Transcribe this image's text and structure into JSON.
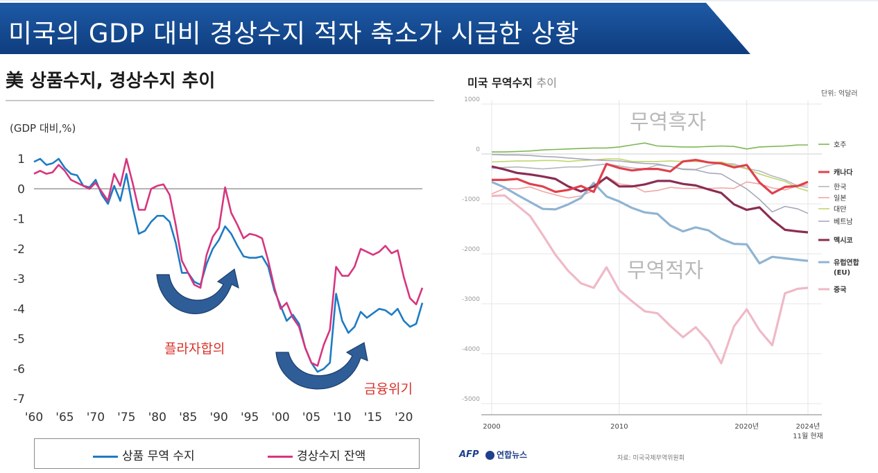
{
  "header": {
    "title": "미국의 GDP 대비 경상수지 적자 축소가 시급한 상황",
    "bg_color": "#164a8f"
  },
  "left_chart": {
    "title": "美 상품수지, 경상수지 추이",
    "unit": "(GDP 대비,%)",
    "annotations": [
      "플라자합의",
      "금융위기"
    ],
    "legend": [
      {
        "label": "상품 무역 수지",
        "color": "#1e7bc4"
      },
      {
        "label": "경상수지 잔액",
        "color": "#d6357f"
      }
    ]
  },
  "right_chart": {
    "title_bold": "미국 무역수지",
    "title_light": "추이",
    "unit": "단위: 억달러",
    "overlay_surplus": "무역흑자",
    "overlay_deficit": "무역적자",
    "source": "자료: 미국국제무역위원회",
    "logo_afp": "AFP",
    "logo_yonhap": "연합뉴스"
  },
  "chart_data": [
    {
      "type": "line",
      "title": "美 상품수지, 경상수지 추이",
      "ylabel": "(GDP 대비,%)",
      "xlabel": "",
      "ylim": [
        -7,
        1
      ],
      "yticks": [
        1,
        0,
        -1,
        -2,
        -3,
        -4,
        -5,
        -6,
        -7
      ],
      "xlim": [
        1960,
        2023
      ],
      "xtick_labels": [
        "'60",
        "'65",
        "'70",
        "'75",
        "'80",
        "'85",
        "'90",
        "'95",
        "'00",
        "'05",
        "'10",
        "'15",
        "'20"
      ],
      "xtick_years": [
        1960,
        1965,
        1970,
        1975,
        1980,
        1985,
        1990,
        1995,
        2000,
        2005,
        2010,
        2015,
        2020
      ],
      "zero_line": true,
      "x": [
        1960,
        1961,
        1962,
        1963,
        1964,
        1965,
        1966,
        1967,
        1968,
        1969,
        1970,
        1971,
        1972,
        1973,
        1974,
        1975,
        1976,
        1977,
        1978,
        1979,
        1980,
        1981,
        1982,
        1983,
        1984,
        1985,
        1986,
        1987,
        1988,
        1989,
        1990,
        1991,
        1992,
        1993,
        1994,
        1995,
        1996,
        1997,
        1998,
        1999,
        2000,
        2001,
        2002,
        2003,
        2004,
        2005,
        2006,
        2007,
        2008,
        2009,
        2010,
        2011,
        2012,
        2013,
        2014,
        2015,
        2016,
        2017,
        2018,
        2019,
        2020,
        2021,
        2022,
        2023
      ],
      "series": [
        {
          "name": "상품 무역 수지",
          "color": "#1e7bc4",
          "values": [
            0.9,
            1.0,
            0.8,
            0.85,
            1.0,
            0.7,
            0.5,
            0.45,
            0.1,
            0.05,
            0.3,
            -0.2,
            -0.5,
            0.1,
            -0.4,
            0.5,
            -0.6,
            -1.5,
            -1.4,
            -1.1,
            -0.9,
            -0.9,
            -1.1,
            -1.8,
            -2.8,
            -2.8,
            -3.1,
            -3.2,
            -2.5,
            -2.0,
            -1.7,
            -1.25,
            -1.5,
            -1.9,
            -2.25,
            -2.3,
            -2.3,
            -2.25,
            -2.6,
            -3.4,
            -3.9,
            -4.4,
            -4.2,
            -4.5,
            -5.3,
            -5.8,
            -6.1,
            -6.0,
            -5.8,
            -3.5,
            -4.4,
            -4.8,
            -4.6,
            -4.1,
            -4.3,
            -4.15,
            -4.0,
            -4.05,
            -4.2,
            -4.0,
            -4.4,
            -4.6,
            -4.5,
            -3.8
          ]
        },
        {
          "name": "경상수지 잔액",
          "color": "#d6357f",
          "values": [
            0.5,
            0.6,
            0.5,
            0.55,
            0.8,
            0.6,
            0.3,
            0.2,
            0.1,
            0.0,
            0.2,
            -0.1,
            -0.4,
            0.5,
            0.1,
            1.0,
            0.2,
            -0.7,
            -0.7,
            0.0,
            0.1,
            0.15,
            -0.2,
            -1.2,
            -2.4,
            -2.8,
            -3.2,
            -3.3,
            -2.2,
            -1.6,
            -1.3,
            0.05,
            -0.8,
            -1.2,
            -1.65,
            -1.5,
            -1.55,
            -1.65,
            -2.4,
            -3.3,
            -4.0,
            -3.8,
            -4.3,
            -4.6,
            -5.3,
            -5.8,
            -5.9,
            -5.2,
            -4.7,
            -2.6,
            -2.9,
            -2.9,
            -2.6,
            -2.0,
            -2.1,
            -2.2,
            -2.1,
            -1.9,
            -2.15,
            -2.05,
            -2.95,
            -3.65,
            -3.85,
            -3.3
          ]
        }
      ],
      "annotations": [
        {
          "text": "플라자합의",
          "near_year": 1986
        },
        {
          "text": "금융위기",
          "near_year": 2008
        }
      ]
    },
    {
      "type": "line",
      "title": "미국 무역수지 추이",
      "ylabel": "단위: 억달러",
      "xlabel": "",
      "ylim": [
        -5000,
        1000
      ],
      "yticks": [
        1000,
        0,
        -1000,
        -2000,
        -3000,
        -4000,
        -5000
      ],
      "xlim": [
        2000,
        2024.8
      ],
      "xtick_labels": [
        "2000",
        "2010",
        "2020년",
        "2024년 11월 현재"
      ],
      "xtick_years": [
        2000,
        2010,
        2020,
        2024.8
      ],
      "zero_line": true,
      "x": [
        2000,
        2001,
        2002,
        2003,
        2004,
        2005,
        2006,
        2007,
        2008,
        2009,
        2010,
        2011,
        2012,
        2013,
        2014,
        2015,
        2016,
        2017,
        2018,
        2019,
        2020,
        2021,
        2022,
        2023,
        2024,
        2024.8
      ],
      "series": [
        {
          "name": "호주",
          "color": "#7db653",
          "width": 1.6,
          "values": [
            40,
            40,
            50,
            60,
            80,
            90,
            100,
            110,
            120,
            120,
            140,
            180,
            220,
            160,
            150,
            140,
            140,
            150,
            160,
            150,
            100,
            140,
            150,
            160,
            180,
            180
          ]
        },
        {
          "name": "캐나다",
          "color": "#e0404c",
          "width": 3.2,
          "values": [
            -520,
            -520,
            -500,
            -600,
            -650,
            -760,
            -720,
            -640,
            -760,
            -200,
            -280,
            -330,
            -300,
            -300,
            -350,
            -150,
            -120,
            -170,
            -190,
            -270,
            -220,
            -570,
            -790,
            -660,
            -640,
            -560
          ]
        },
        {
          "name": "한국",
          "color": "#b4b7bf",
          "width": 1.6,
          "values": [
            -290,
            -270,
            -260,
            -280,
            -300,
            -280,
            -260,
            -260,
            -230,
            -200,
            -240,
            -280,
            -300,
            -220,
            -250,
            -300,
            -310,
            -230,
            -180,
            -200,
            -290,
            -340,
            -440,
            -520,
            -640,
            -670
          ]
        },
        {
          "name": "일본",
          "color": "#f2a5a5",
          "width": 1.6,
          "values": [
            -800,
            -690,
            -700,
            -660,
            -750,
            -820,
            -880,
            -840,
            -730,
            -450,
            -600,
            -630,
            -760,
            -730,
            -670,
            -690,
            -690,
            -690,
            -680,
            -690,
            -560,
            -600,
            -680,
            -720,
            -640,
            -620
          ]
        },
        {
          "name": "대만",
          "color": "#bfd66e",
          "width": 1.6,
          "values": [
            -160,
            -150,
            -140,
            -140,
            -130,
            -130,
            -150,
            -130,
            -120,
            -100,
            -100,
            -150,
            -150,
            -150,
            -140,
            -150,
            -150,
            -170,
            -160,
            -230,
            -300,
            -400,
            -480,
            -550,
            -680,
            -740
          ]
        },
        {
          "name": "베트남",
          "color": "#a8a8b8",
          "width": 1.6,
          "values": [
            -10,
            -20,
            -20,
            -30,
            -50,
            -60,
            -80,
            -100,
            -120,
            -130,
            -140,
            -170,
            -190,
            -200,
            -250,
            -310,
            -320,
            -380,
            -400,
            -550,
            -700,
            -910,
            -1160,
            -1050,
            -1100,
            -1190
          ]
        },
        {
          "name": "멕시코",
          "color": "#8b2d52",
          "width": 3.2,
          "values": [
            -250,
            -310,
            -380,
            -410,
            -450,
            -500,
            -650,
            -750,
            -650,
            -470,
            -650,
            -650,
            -610,
            -540,
            -540,
            -600,
            -630,
            -710,
            -780,
            -1010,
            -1120,
            -1070,
            -1320,
            -1520,
            -1550,
            -1570
          ]
        },
        {
          "name": "유럽연합 (EU)",
          "color": "#8fb4d2",
          "width": 3.2,
          "values": [
            -560,
            -670,
            -820,
            -960,
            -1100,
            -1110,
            -1010,
            -880,
            -580,
            -850,
            -950,
            -1080,
            -1170,
            -1200,
            -1430,
            -1550,
            -1470,
            -1530,
            -1700,
            -1800,
            -1810,
            -2190,
            -2060,
            -2090,
            -2120,
            -2140
          ]
        },
        {
          "name": "중국",
          "color": "#efb9c6",
          "width": 3.2,
          "values": [
            -840,
            -830,
            -1030,
            -1240,
            -1620,
            -2020,
            -2340,
            -2590,
            -2680,
            -2270,
            -2730,
            -2950,
            -3150,
            -3190,
            -3440,
            -3670,
            -3470,
            -3750,
            -4190,
            -3450,
            -3110,
            -3530,
            -3830,
            -2790,
            -2700,
            -2680
          ]
        }
      ],
      "legend_order": [
        "호주",
        "캐나다",
        "한국",
        "일본",
        "대만",
        "베트남",
        "멕시코",
        "유럽연합 (EU)",
        "중국"
      ]
    }
  ]
}
